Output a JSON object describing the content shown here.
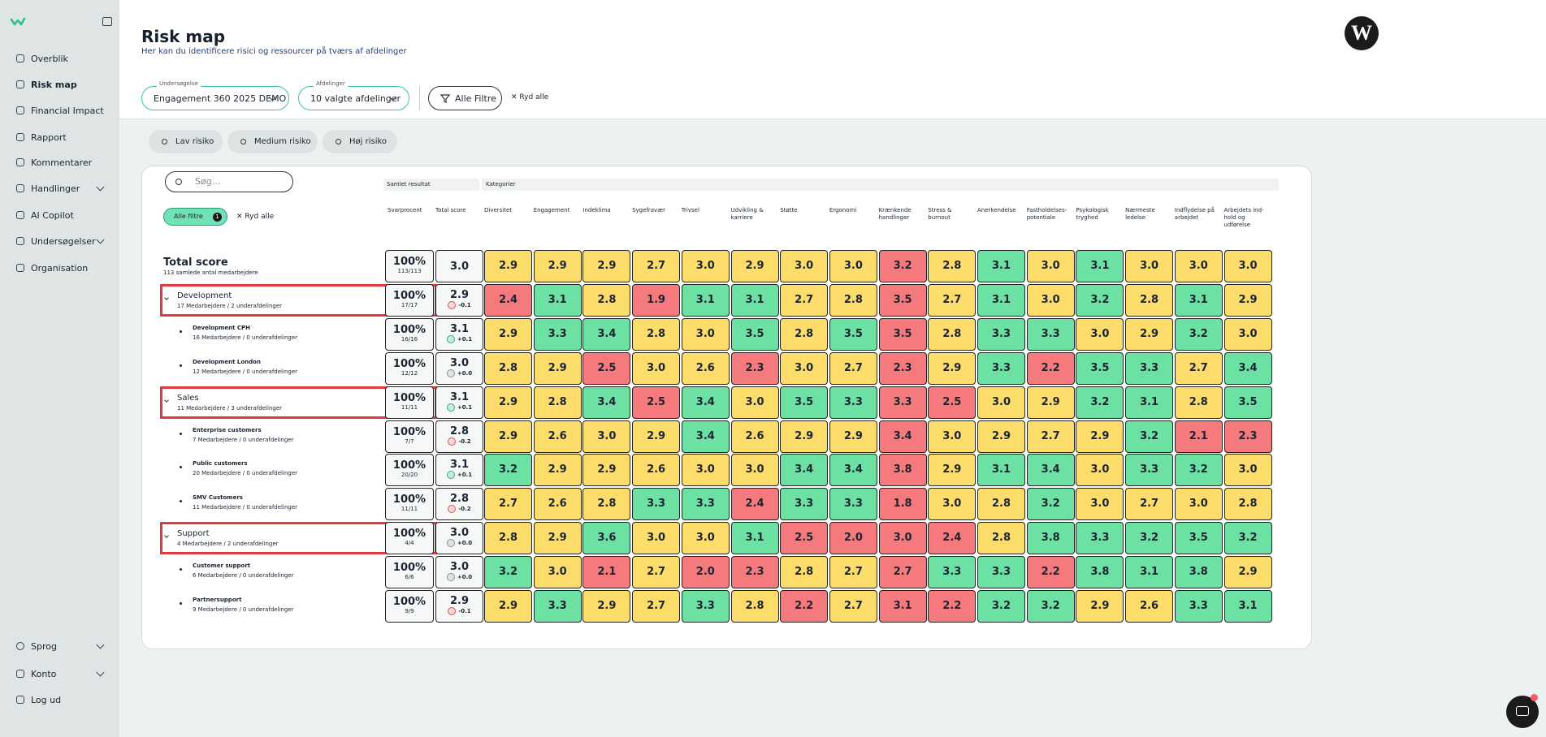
{
  "sidebar": {
    "nav": [
      "Overblik",
      "Risk map",
      "Financial Impact",
      "Rapport",
      "Kommentarer",
      "Handlinger",
      "AI Copilot",
      "Undersøgelser",
      "Organisation"
    ],
    "bottom": [
      "Sprog",
      "Konto",
      "Log ud"
    ]
  },
  "header": {
    "title": "Risk map",
    "subtitle": "Her kan du identificere risici og ressourcer på tværs af afdelinger"
  },
  "filters": {
    "survey_label": "Undersøgelse",
    "survey": "Engagement 360 2025 DEMO",
    "departments_label": "Afdelinger",
    "departments": "10 valgte afdelinger",
    "all_filters": "Alle Filtre",
    "clear": "Ryd alle"
  },
  "legend": [
    "Lav risiko",
    "Medium risiko",
    "Høj risiko"
  ],
  "table": {
    "search_placeholder": "Søg...",
    "active_filters": "Alle filtre",
    "active_filter_count": "1",
    "clear": "Ryd alle",
    "group_summary": "Samlet resultat",
    "group_categories": "Kategorier",
    "col_response": "Svarprocent",
    "col_score": "Total score",
    "categories": [
      "Diversitet",
      "Engagement",
      "Indeklima",
      "Sygefravær",
      "Trivsel",
      "Udvikling & karriere",
      "Støtte",
      "Ergonomi",
      "Krænkende handlinger",
      "Stress & burnout",
      "Anerkendelse",
      "Fastholdelses- potentiale",
      "Psykologisk tryghed",
      "Nærmeste ledelse",
      "Indflydelse på arbejdet",
      "Arbejdets ind- hold og udførelse"
    ],
    "total": {
      "name": "Total score",
      "subtitle": "113 samlede antal medarbejdere",
      "response": "100%",
      "response_count": "113/113",
      "score": "3.0",
      "values": [
        "2.9",
        "2.9",
        "2.9",
        "2.7",
        "3.0",
        "2.9",
        "3.0",
        "3.0",
        "3.2",
        "2.8",
        "3.1",
        "3.0",
        "3.1",
        "3.0",
        "3.0",
        "3.0"
      ],
      "colors": [
        "#fcdc6a",
        "#fcdc6a",
        "#fcdc6a",
        "#fcdc6a",
        "#fcdc6a",
        "#fcdc6a",
        "#fcdc6a",
        "#fcdc6a",
        "#f47a7e",
        "#fcdc6a",
        "#6de0a3",
        "#fcdc6a",
        "#6de0a3",
        "#fcdc6a",
        "#fcdc6a",
        "#fcdc6a"
      ]
    },
    "groups": [
      {
        "name": "Development",
        "subtitle": "17 Medarbejdere / 2 underafdelinger",
        "response": "100%",
        "response_count": "17/17",
        "score": "2.9",
        "delta": "-0.1",
        "values": [
          "2.4",
          "3.1",
          "2.8",
          "1.9",
          "3.1",
          "3.1",
          "2.7",
          "2.8",
          "3.5",
          "2.7",
          "3.1",
          "3.0",
          "3.2",
          "2.8",
          "3.1",
          "2.9"
        ],
        "colors": [
          "#f47a7e",
          "#6de0a3",
          "#fcdc6a",
          "#f47a7e",
          "#6de0a3",
          "#6de0a3",
          "#fcdc6a",
          "#fcdc6a",
          "#f47a7e",
          "#fcdc6a",
          "#6de0a3",
          "#fcdc6a",
          "#6de0a3",
          "#fcdc6a",
          "#6de0a3",
          "#fcdc6a"
        ],
        "children": [
          {
            "name": "Development CPH",
            "subtitle": "16 Medarbejdere / 0 underafdelinger",
            "response": "100%",
            "response_count": "16/16",
            "score": "3.1",
            "delta": "+0.1",
            "values": [
              "2.9",
              "3.3",
              "3.4",
              "2.8",
              "3.0",
              "3.5",
              "2.8",
              "3.5",
              "3.5",
              "2.8",
              "3.3",
              "3.3",
              "3.0",
              "2.9",
              "3.2",
              "3.0"
            ],
            "colors": [
              "#fcdc6a",
              "#6de0a3",
              "#6de0a3",
              "#fcdc6a",
              "#fcdc6a",
              "#6de0a3",
              "#fcdc6a",
              "#6de0a3",
              "#f47a7e",
              "#fcdc6a",
              "#6de0a3",
              "#6de0a3",
              "#fcdc6a",
              "#fcdc6a",
              "#6de0a3",
              "#fcdc6a"
            ]
          },
          {
            "name": "Development London",
            "subtitle": "12 Medarbejdere / 0 underafdelinger",
            "response": "100%",
            "response_count": "12/12",
            "score": "3.0",
            "delta": "+0.0",
            "values": [
              "2.8",
              "2.9",
              "2.5",
              "3.0",
              "2.6",
              "2.3",
              "3.0",
              "2.7",
              "2.3",
              "2.9",
              "3.3",
              "2.2",
              "3.5",
              "3.3",
              "2.7",
              "3.4"
            ],
            "colors": [
              "#fcdc6a",
              "#fcdc6a",
              "#f47a7e",
              "#fcdc6a",
              "#fcdc6a",
              "#f47a7e",
              "#fcdc6a",
              "#fcdc6a",
              "#f47a7e",
              "#fcdc6a",
              "#6de0a3",
              "#f47a7e",
              "#6de0a3",
              "#6de0a3",
              "#fcdc6a",
              "#6de0a3"
            ]
          }
        ]
      },
      {
        "name": "Sales",
        "subtitle": "11 Medarbejdere / 3 underafdelinger",
        "response": "100%",
        "response_count": "11/11",
        "score": "3.1",
        "delta": "+0.1",
        "values": [
          "2.9",
          "2.8",
          "3.4",
          "2.5",
          "3.4",
          "3.0",
          "3.5",
          "3.3",
          "3.3",
          "2.5",
          "3.0",
          "2.9",
          "3.2",
          "3.1",
          "2.8",
          "3.5"
        ],
        "colors": [
          "#fcdc6a",
          "#fcdc6a",
          "#6de0a3",
          "#f47a7e",
          "#6de0a3",
          "#fcdc6a",
          "#6de0a3",
          "#6de0a3",
          "#f47a7e",
          "#f47a7e",
          "#fcdc6a",
          "#fcdc6a",
          "#6de0a3",
          "#6de0a3",
          "#fcdc6a",
          "#6de0a3"
        ],
        "children": [
          {
            "name": "Enterprise customers",
            "subtitle": "7 Medarbejdere / 0 underafdelinger",
            "response": "100%",
            "response_count": "7/7",
            "score": "2.8",
            "delta": "-0.2",
            "values": [
              "2.9",
              "2.6",
              "3.0",
              "2.9",
              "3.4",
              "2.6",
              "2.9",
              "2.9",
              "3.4",
              "3.0",
              "2.9",
              "2.7",
              "2.9",
              "3.2",
              "2.1",
              "2.3"
            ],
            "colors": [
              "#fcdc6a",
              "#fcdc6a",
              "#fcdc6a",
              "#fcdc6a",
              "#6de0a3",
              "#fcdc6a",
              "#fcdc6a",
              "#fcdc6a",
              "#f47a7e",
              "#fcdc6a",
              "#fcdc6a",
              "#fcdc6a",
              "#fcdc6a",
              "#6de0a3",
              "#f47a7e",
              "#f47a7e"
            ]
          },
          {
            "name": "Public customers",
            "subtitle": "20 Medarbejdere / 0 underafdelinger",
            "response": "100%",
            "response_count": "20/20",
            "score": "3.1",
            "delta": "+0.1",
            "values": [
              "3.2",
              "2.9",
              "2.9",
              "2.6",
              "3.0",
              "3.0",
              "3.4",
              "3.4",
              "3.8",
              "2.9",
              "3.1",
              "3.4",
              "3.0",
              "3.3",
              "3.2",
              "3.0"
            ],
            "colors": [
              "#6de0a3",
              "#fcdc6a",
              "#fcdc6a",
              "#fcdc6a",
              "#fcdc6a",
              "#fcdc6a",
              "#6de0a3",
              "#6de0a3",
              "#f47a7e",
              "#fcdc6a",
              "#6de0a3",
              "#6de0a3",
              "#fcdc6a",
              "#6de0a3",
              "#6de0a3",
              "#fcdc6a"
            ]
          },
          {
            "name": "SMV Customers",
            "subtitle": "11 Medarbejdere / 0 underafdelinger",
            "response": "100%",
            "response_count": "11/11",
            "score": "2.8",
            "delta": "-0.2",
            "values": [
              "2.7",
              "2.6",
              "2.8",
              "3.3",
              "3.3",
              "2.4",
              "3.3",
              "3.3",
              "1.8",
              "3.0",
              "2.8",
              "3.2",
              "3.0",
              "2.7",
              "3.0",
              "2.8"
            ],
            "colors": [
              "#fcdc6a",
              "#fcdc6a",
              "#fcdc6a",
              "#6de0a3",
              "#6de0a3",
              "#f47a7e",
              "#6de0a3",
              "#6de0a3",
              "#f47a7e",
              "#fcdc6a",
              "#fcdc6a",
              "#6de0a3",
              "#fcdc6a",
              "#fcdc6a",
              "#fcdc6a",
              "#fcdc6a"
            ]
          }
        ]
      },
      {
        "name": "Support",
        "subtitle": "4 Medarbejdere / 2 underafdelinger",
        "response": "100%",
        "response_count": "4/4",
        "score": "3.0",
        "delta": "+0.0",
        "values": [
          "2.8",
          "2.9",
          "3.6",
          "3.0",
          "3.0",
          "3.1",
          "2.5",
          "2.0",
          "3.0",
          "2.4",
          "2.8",
          "3.8",
          "3.3",
          "3.2",
          "3.5",
          "3.2"
        ],
        "colors": [
          "#fcdc6a",
          "#fcdc6a",
          "#6de0a3",
          "#fcdc6a",
          "#fcdc6a",
          "#6de0a3",
          "#f47a7e",
          "#f47a7e",
          "#f47a7e",
          "#f47a7e",
          "#fcdc6a",
          "#6de0a3",
          "#6de0a3",
          "#6de0a3",
          "#6de0a3",
          "#6de0a3"
        ],
        "children": [
          {
            "name": "Customer support",
            "subtitle": "6 Medarbejdere / 0 underafdelinger",
            "response": "100%",
            "response_count": "6/6",
            "score": "3.0",
            "delta": "+0.0",
            "values": [
              "3.2",
              "3.0",
              "2.1",
              "2.7",
              "2.0",
              "2.3",
              "2.8",
              "2.7",
              "2.7",
              "3.3",
              "3.3",
              "2.2",
              "3.8",
              "3.1",
              "3.8",
              "2.9"
            ],
            "colors": [
              "#6de0a3",
              "#fcdc6a",
              "#f47a7e",
              "#fcdc6a",
              "#f47a7e",
              "#f47a7e",
              "#fcdc6a",
              "#fcdc6a",
              "#f47a7e",
              "#6de0a3",
              "#6de0a3",
              "#f47a7e",
              "#6de0a3",
              "#6de0a3",
              "#6de0a3",
              "#fcdc6a"
            ]
          },
          {
            "name": "Partnersupport",
            "subtitle": "9 Medarbejdere / 0 underafdelinger",
            "response": "100%",
            "response_count": "9/9",
            "score": "2.9",
            "delta": "-0.1",
            "values": [
              "2.9",
              "3.3",
              "2.9",
              "2.7",
              "3.3",
              "2.8",
              "2.2",
              "2.7",
              "3.1",
              "2.2",
              "3.2",
              "3.2",
              "2.9",
              "2.6",
              "3.3",
              "3.1"
            ],
            "colors": [
              "#fcdc6a",
              "#6de0a3",
              "#fcdc6a",
              "#fcdc6a",
              "#6de0a3",
              "#fcdc6a",
              "#f47a7e",
              "#fcdc6a",
              "#f47a7e",
              "#f47a7e",
              "#6de0a3",
              "#6de0a3",
              "#fcdc6a",
              "#fcdc6a",
              "#6de0a3",
              "#6de0a3"
            ]
          }
        ]
      }
    ]
  }
}
